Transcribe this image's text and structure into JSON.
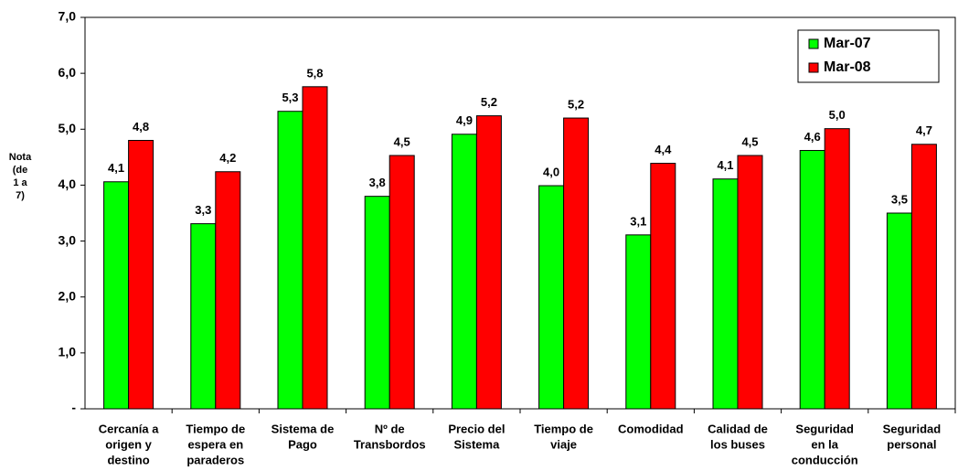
{
  "chart_data": {
    "type": "bar",
    "ylabel": [
      "Nota",
      "(de",
      "1 a",
      "7)"
    ],
    "categories": [
      [
        "Cercanía a",
        "origen y",
        "destino"
      ],
      [
        "Tiempo de",
        "espera en",
        "paraderos"
      ],
      [
        "Sistema de",
        "Pago"
      ],
      [
        "Nº de",
        "Transbordos"
      ],
      [
        "Precio del",
        "Sistema"
      ],
      [
        "Tiempo de",
        "viaje"
      ],
      [
        "Comodidad"
      ],
      [
        "Calidad de",
        "los buses"
      ],
      [
        "Seguridad",
        "en la",
        "conducción"
      ],
      [
        "Seguridad",
        "personal"
      ]
    ],
    "series": [
      {
        "name": "Mar-07",
        "color": "#00ff00",
        "values": [
          4.06,
          3.31,
          5.32,
          3.8,
          4.91,
          3.99,
          3.11,
          4.11,
          4.62,
          3.5
        ],
        "value_labels": [
          "4,1",
          "3,3",
          "5,3",
          "3,8",
          "4,9",
          "4,0",
          "3,1",
          "4,1",
          "4,6",
          "3,5"
        ]
      },
      {
        "name": "Mar-08",
        "color": "#ff0000",
        "values": [
          4.8,
          4.24,
          5.76,
          4.53,
          5.24,
          5.2,
          4.39,
          4.53,
          5.01,
          4.73
        ],
        "value_labels": [
          "4,8",
          "4,2",
          "5,8",
          "4,5",
          "5,2",
          "5,2",
          "4,4",
          "4,5",
          "5,0",
          "4,7"
        ]
      }
    ],
    "ylim": [
      0,
      7
    ],
    "yticks": [
      {
        "value": 0,
        "label": "-"
      },
      {
        "value": 1,
        "label": "1,0"
      },
      {
        "value": 2,
        "label": "2,0"
      },
      {
        "value": 3,
        "label": "3,0"
      },
      {
        "value": 4,
        "label": "4,0"
      },
      {
        "value": 5,
        "label": "5,0"
      },
      {
        "value": 6,
        "label": "6,0"
      },
      {
        "value": 7,
        "label": "7,0"
      }
    ],
    "grid": false,
    "legend": "top-right"
  }
}
